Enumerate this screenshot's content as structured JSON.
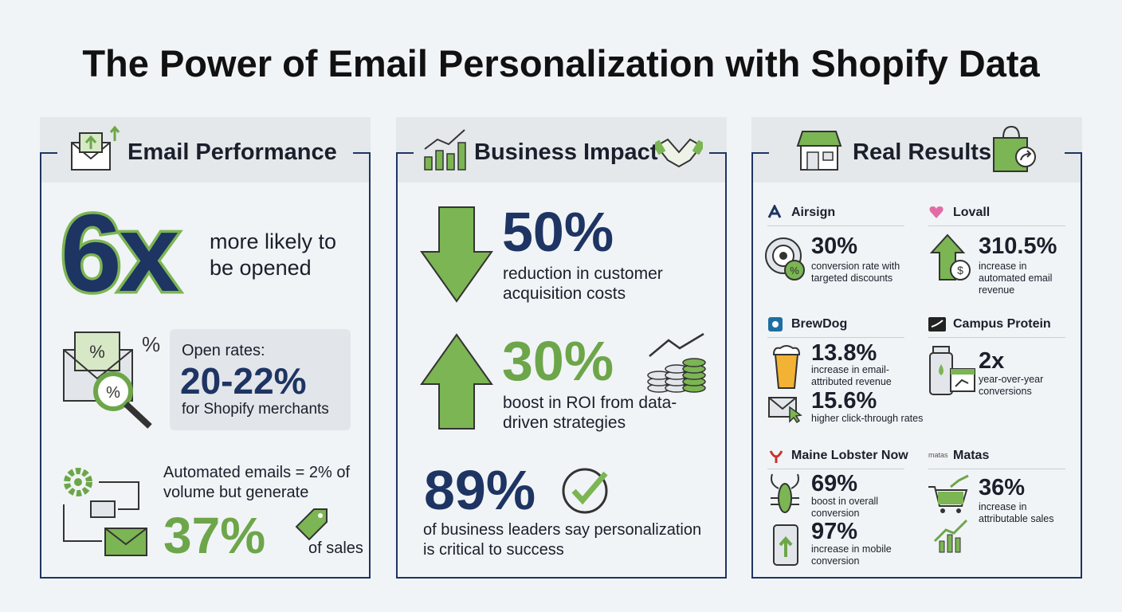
{
  "title": "The Power of Email Personalization with Shopify Data",
  "email_performance": {
    "heading": "Email Performance",
    "likely": {
      "value": "6x",
      "text": "more likely to be opened"
    },
    "open_rates": {
      "label": "Open rates:",
      "value": "20-22%",
      "text": "for Shopify merchants"
    },
    "automated": {
      "text": "Automated emails = 2% of volume but generate",
      "value": "37%",
      "suffix": "of sales"
    }
  },
  "business_impact": {
    "heading": "Business Impact",
    "items": [
      {
        "value": "50%",
        "text": "reduction in customer acquisition costs"
      },
      {
        "value": "30%",
        "text": "boost in ROI from data-driven strategies"
      },
      {
        "value": "89%",
        "text": "of business leaders say personalization is critical to success"
      }
    ]
  },
  "real_results": {
    "heading": "Real Results",
    "brands": [
      {
        "name": "Airsign",
        "stats": [
          {
            "value": "30%",
            "text": "conversion rate with targeted discounts"
          }
        ]
      },
      {
        "name": "Lovall",
        "stats": [
          {
            "value": "310.5%",
            "text": "increase in automated email revenue"
          }
        ]
      },
      {
        "name": "BrewDog",
        "stats": [
          {
            "value": "13.8%",
            "text": "increase in email-attributed revenue"
          },
          {
            "value": "15.6%",
            "text": "higher click-through rates"
          }
        ]
      },
      {
        "name": "Campus Protein",
        "stats": [
          {
            "value": "2x",
            "text": "year-over-year conversions"
          }
        ]
      },
      {
        "name": "Maine Lobster Now",
        "stats": [
          {
            "value": "69%",
            "text": "boost in overall conversion"
          },
          {
            "value": "97%",
            "text": "increase in mobile conversion"
          }
        ]
      },
      {
        "name": "Matas",
        "logo_text": "matas",
        "stats": [
          {
            "value": "36%",
            "text": "increase in attributable sales"
          }
        ]
      }
    ]
  }
}
